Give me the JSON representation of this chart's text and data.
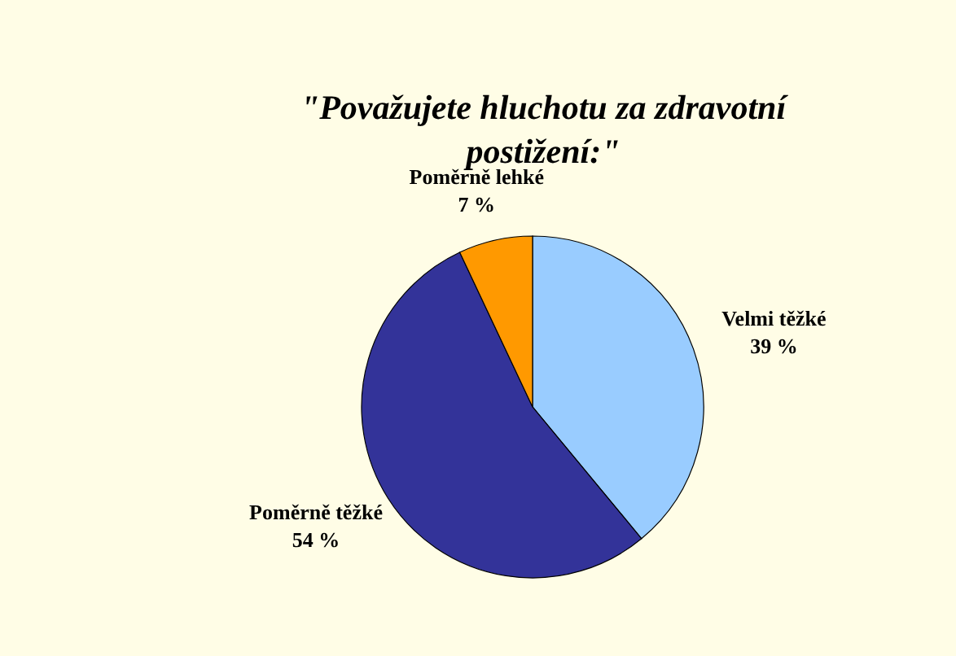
{
  "chart_data": {
    "type": "pie",
    "title": "\"Považujete hluchotu za zdravotní postižení:\"",
    "categories": [
      "Velmi těžké",
      "Poměrně těžké",
      "Poměrně lehké"
    ],
    "values": [
      39,
      54,
      7
    ],
    "value_labels": [
      "39 %",
      "54 %",
      "7 %"
    ],
    "colors": [
      "#99ccff",
      "#333399",
      "#ff9900"
    ]
  }
}
